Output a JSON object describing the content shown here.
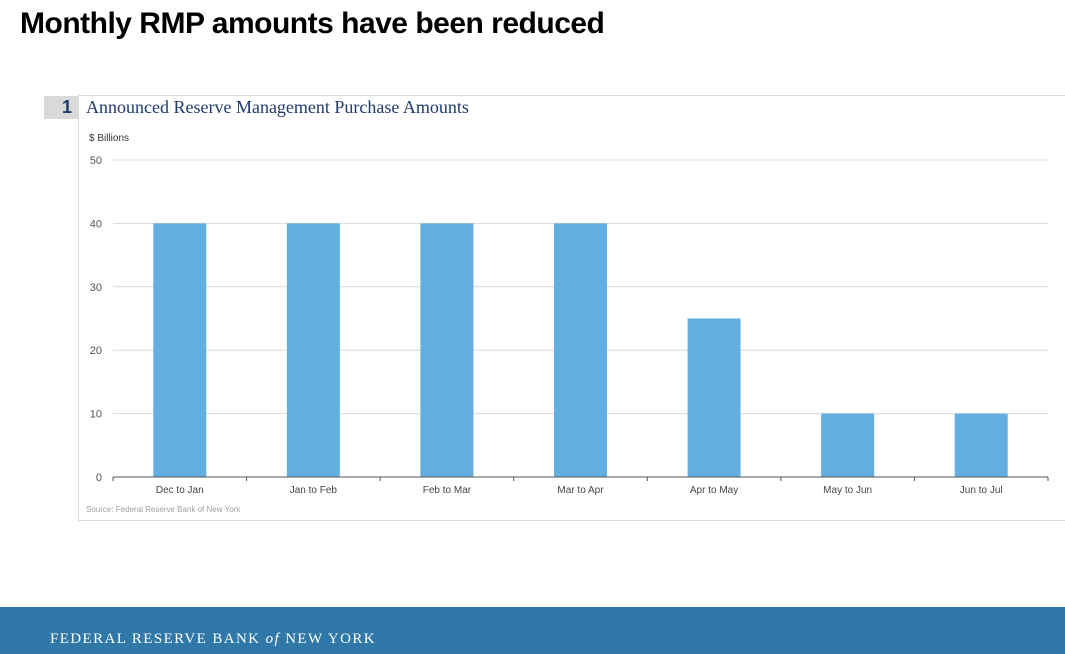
{
  "slide": {
    "title": "Monthly RMP amounts have been reduced"
  },
  "exhibit": {
    "number": "1"
  },
  "chart_data": {
    "type": "bar",
    "title": "Announced Reserve Management Purchase Amounts",
    "unit_label": "$ Billions",
    "categories": [
      "Dec to Jan",
      "Jan to Feb",
      "Feb to Mar",
      "Mar to Apr",
      "Apr to May",
      "May to Jun",
      "Jun to Jul"
    ],
    "values": [
      40,
      40,
      40,
      40,
      25,
      10,
      10
    ],
    "ylim": [
      0,
      50
    ],
    "yticks": [
      0,
      10,
      20,
      30,
      40,
      50
    ],
    "grid": true,
    "bar_color": "#62aee0",
    "source": "Source: Federal Reserve Bank of New York"
  },
  "footer": {
    "brand_part1": "FEDERAL RESERVE BANK",
    "brand_of": "of",
    "brand_part2": "NEW YORK",
    "band_color": "#2f78a8"
  }
}
